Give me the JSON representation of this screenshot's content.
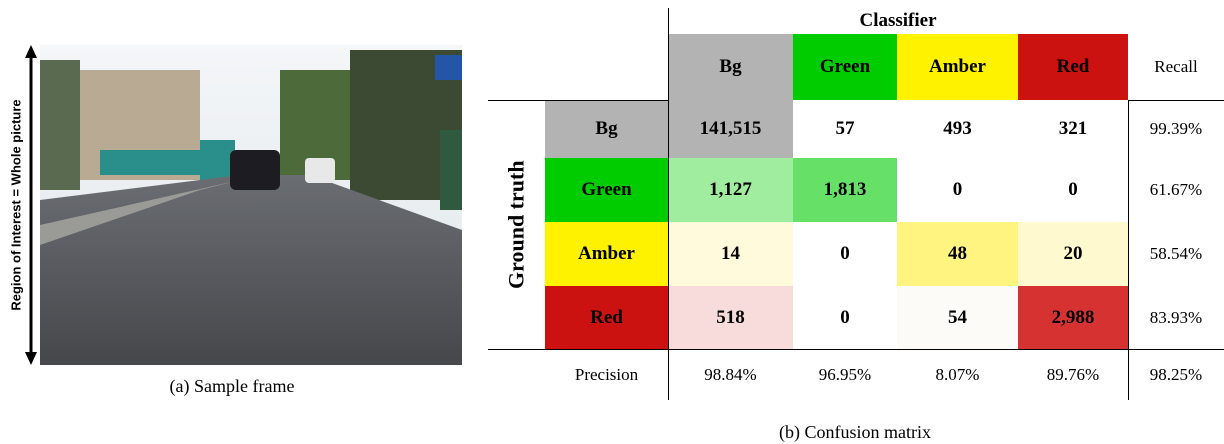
{
  "figure_a": {
    "axis_label": "Region of Interest = Whole picture",
    "caption": "(a) Sample frame"
  },
  "table": {
    "column_group": "Classifier",
    "row_group": "Ground truth",
    "columns": [
      "Bg",
      "Green",
      "Amber",
      "Red",
      "Recall"
    ],
    "rows": [
      {
        "label": "Bg",
        "cells": [
          "141,515",
          "57",
          "493",
          "321",
          "99.39%"
        ]
      },
      {
        "label": "Green",
        "cells": [
          "1,127",
          "1,813",
          "0",
          "0",
          "61.67%"
        ]
      },
      {
        "label": "Amber",
        "cells": [
          "14",
          "0",
          "48",
          "20",
          "58.54%"
        ]
      },
      {
        "label": "Red",
        "cells": [
          "518",
          "0",
          "54",
          "2,988",
          "83.93%"
        ]
      }
    ],
    "precision": {
      "label": "Precision",
      "cells": [
        "98.84%",
        "96.95%",
        "8.07%",
        "89.76%",
        "98.25%"
      ]
    },
    "caption": "(b) Confusion matrix"
  }
}
